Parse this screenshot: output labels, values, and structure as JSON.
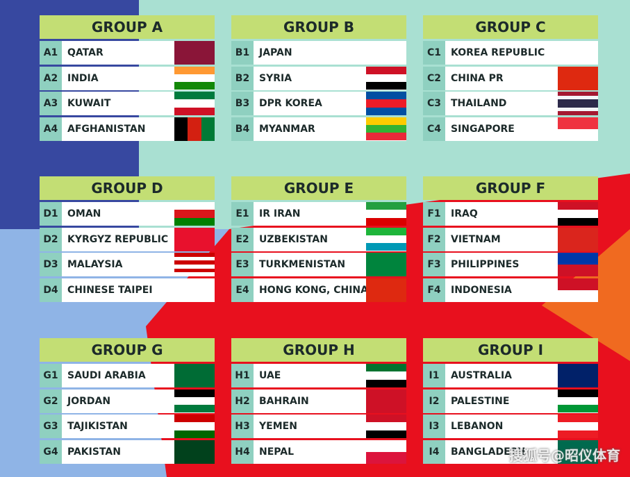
{
  "groups": [
    {
      "title": "GROUP A",
      "rows": [
        [
          "A1",
          "QATAR"
        ],
        [
          "A2",
          "INDIA"
        ],
        [
          "A3",
          "KUWAIT"
        ],
        [
          "A4",
          "AFGHANISTAN"
        ]
      ]
    },
    {
      "title": "GROUP B",
      "rows": [
        [
          "B1",
          "JAPAN"
        ],
        [
          "B2",
          "SYRIA"
        ],
        [
          "B3",
          "DPR KOREA"
        ],
        [
          "B4",
          "MYANMAR"
        ]
      ]
    },
    {
      "title": "GROUP C",
      "rows": [
        [
          "C1",
          "KOREA REPUBLIC"
        ],
        [
          "C2",
          "CHINA PR"
        ],
        [
          "C3",
          "THAILAND"
        ],
        [
          "C4",
          "SINGAPORE"
        ]
      ]
    },
    {
      "title": "GROUP D",
      "rows": [
        [
          "D1",
          "OMAN"
        ],
        [
          "D2",
          "KYRGYZ REPUBLIC"
        ],
        [
          "D3",
          "MALAYSIA"
        ],
        [
          "D4",
          "CHINESE TAIPEI"
        ]
      ]
    },
    {
      "title": "GROUP E",
      "rows": [
        [
          "E1",
          "IR IRAN"
        ],
        [
          "E2",
          "UZBEKISTAN"
        ],
        [
          "E3",
          "TURKMENISTAN"
        ],
        [
          "E4",
          "HONG KONG, CHINA"
        ]
      ]
    },
    {
      "title": "GROUP F",
      "rows": [
        [
          "F1",
          "IRAQ"
        ],
        [
          "F2",
          "VIETNAM"
        ],
        [
          "F3",
          "PHILIPPINES"
        ],
        [
          "F4",
          "INDONESIA"
        ]
      ]
    },
    {
      "title": "GROUP G",
      "rows": [
        [
          "G1",
          "SAUDI ARABIA"
        ],
        [
          "G2",
          "JORDAN"
        ],
        [
          "G3",
          "TAJIKISTAN"
        ],
        [
          "G4",
          "PAKISTAN"
        ]
      ]
    },
    {
      "title": "GROUP H",
      "rows": [
        [
          "H1",
          "UAE"
        ],
        [
          "H2",
          "BAHRAIN"
        ],
        [
          "H3",
          "YEMEN"
        ],
        [
          "H4",
          "NEPAL"
        ]
      ]
    },
    {
      "title": "GROUP I",
      "rows": [
        [
          "I1",
          "AUSTRALIA"
        ],
        [
          "I2",
          "PALESTINE"
        ],
        [
          "I3",
          "LEBANON"
        ],
        [
          "I4",
          "BANGLADESH"
        ]
      ]
    }
  ],
  "watermark": "搜狐号@昭仪体育"
}
